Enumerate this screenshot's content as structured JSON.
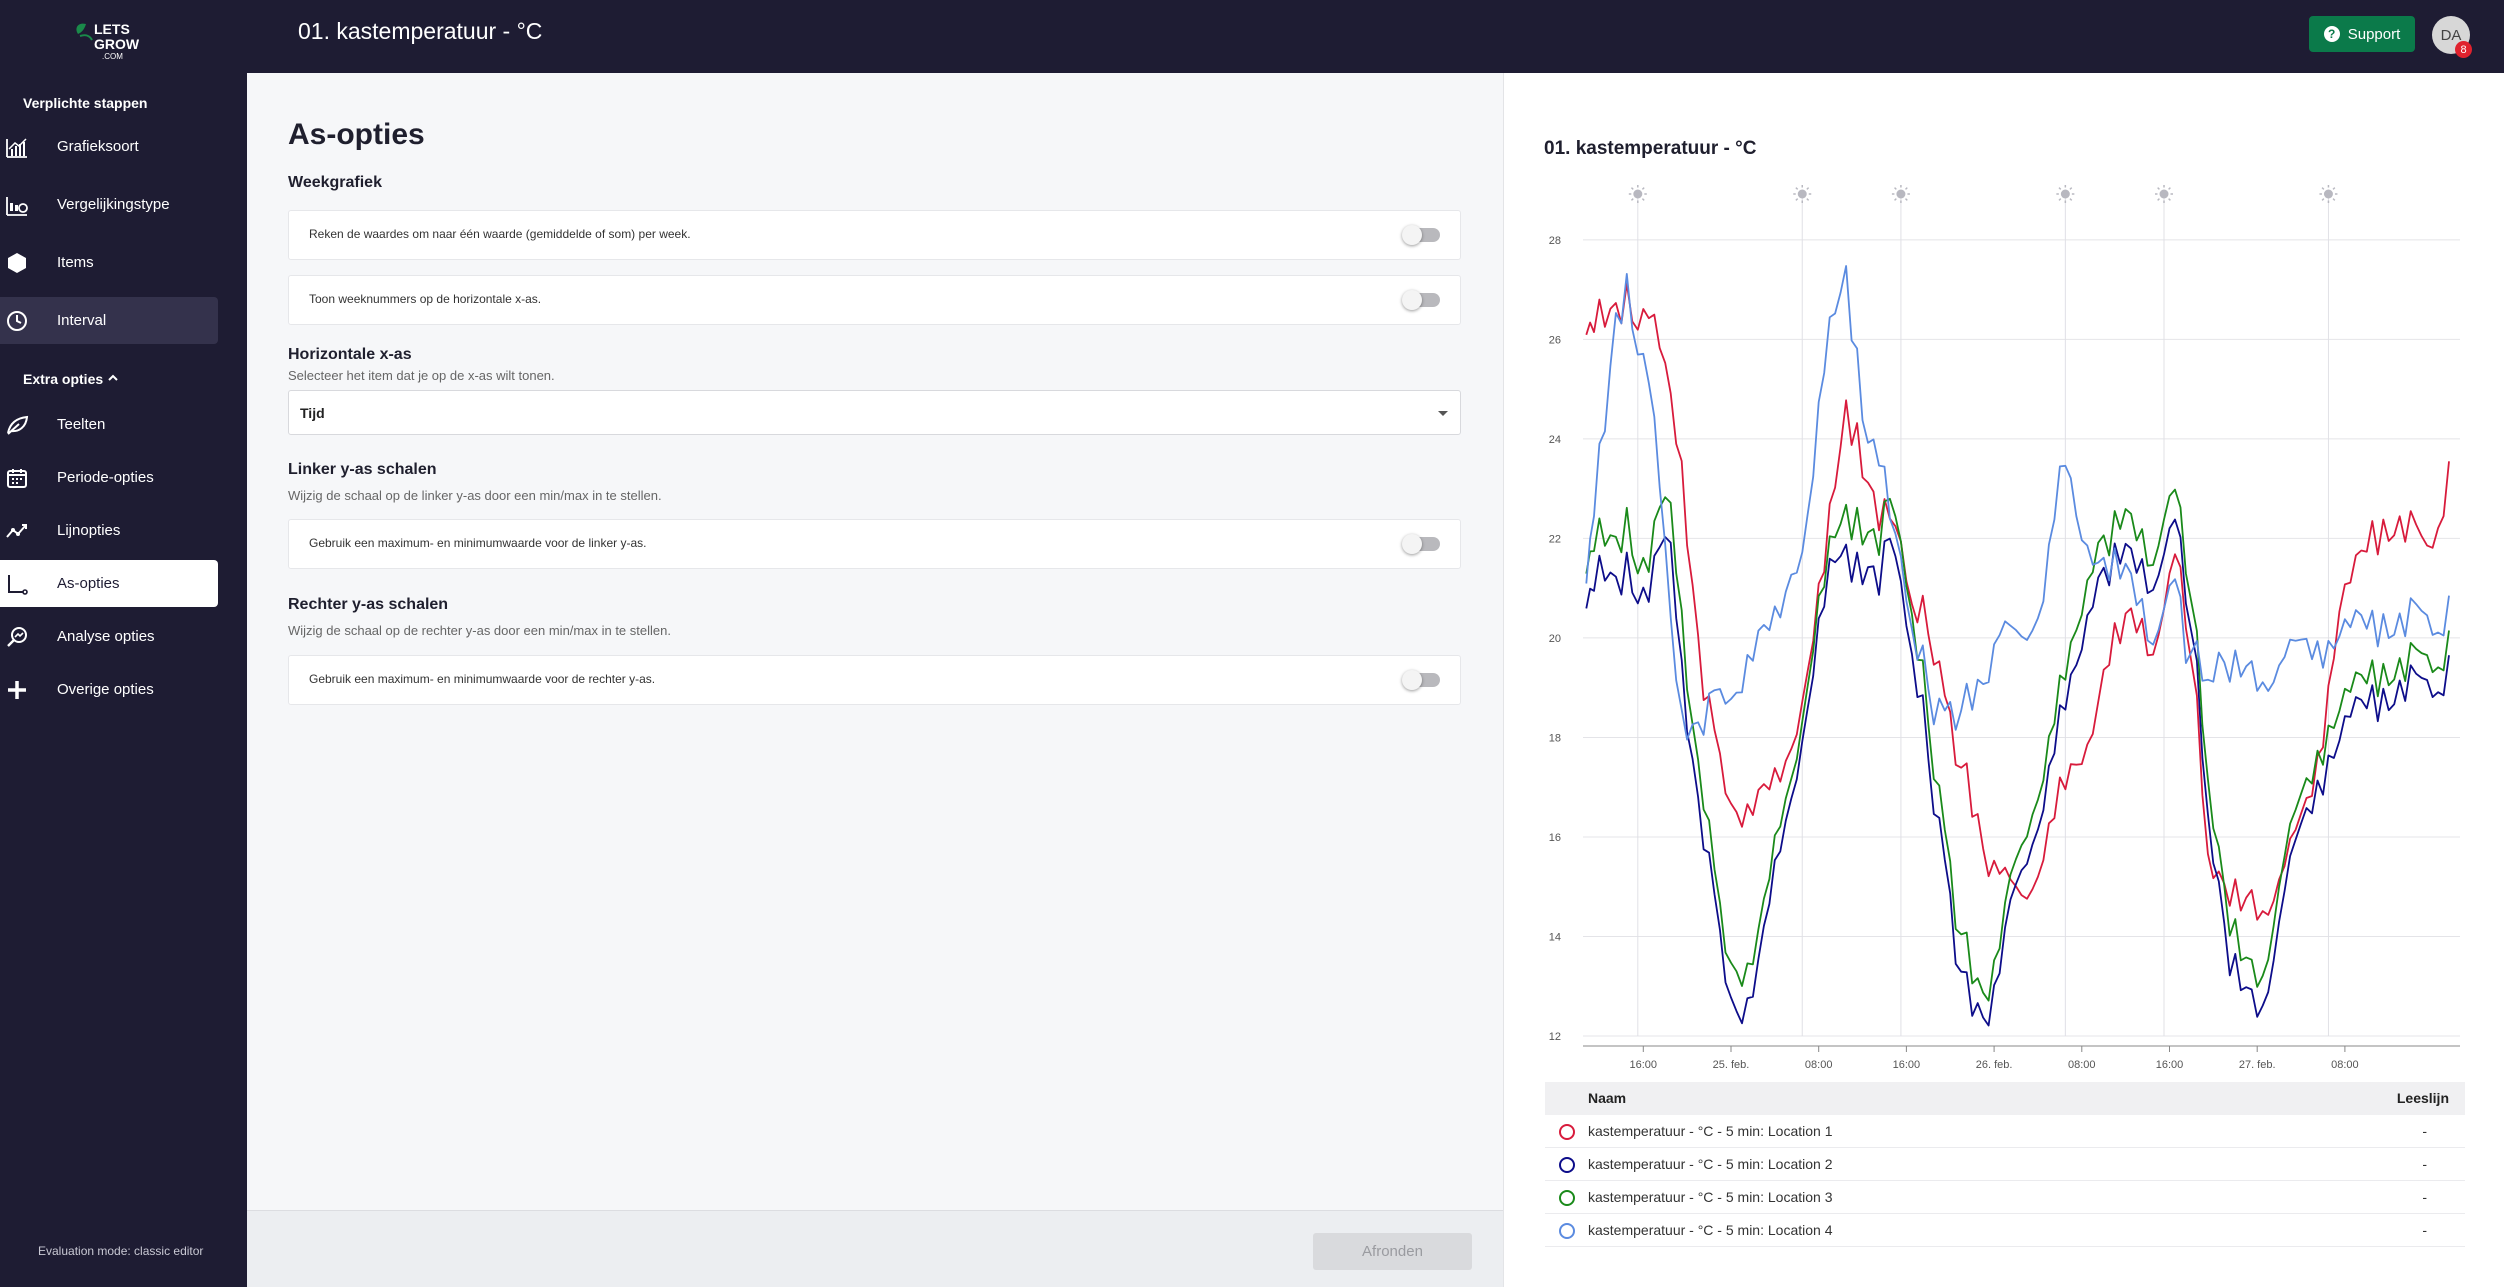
{
  "app": {
    "title": "01. kastemperatuur - °C",
    "support_label": "Support",
    "avatar_initials": "DA",
    "notification_count": "8",
    "logo_text_1": "LETS",
    "logo_text_2": "GROW",
    "logo_text_3": ".COM"
  },
  "sidebar": {
    "required_heading": "Verplichte stappen",
    "required_items": [
      {
        "label": "Grafieksoort",
        "icon": "bar-chart-icon"
      },
      {
        "label": "Vergelijkingstype",
        "icon": "compare-icon"
      },
      {
        "label": "Items",
        "icon": "hexagon-icon"
      },
      {
        "label": "Interval",
        "icon": "clock-icon"
      }
    ],
    "extra_heading": "Extra opties",
    "extra_items": [
      {
        "label": "Teelten",
        "icon": "leaf-icon"
      },
      {
        "label": "Periode-opties",
        "icon": "calendar-icon"
      },
      {
        "label": "Lijnopties",
        "icon": "trend-line-icon"
      },
      {
        "label": "As-opties",
        "icon": "axis-icon"
      },
      {
        "label": "Analyse opties",
        "icon": "analysis-icon"
      },
      {
        "label": "Overige opties",
        "icon": "plus-icon"
      }
    ],
    "eval_mode": "Evaluation mode: classic editor"
  },
  "main": {
    "page_title": "As-opties",
    "week_heading": "Weekgrafiek",
    "week_opt1": "Reken de waardes om naar één waarde (gemiddelde of som) per week.",
    "week_opt2": "Toon weeknummers op de horizontale x-as.",
    "xaxis_heading": "Horizontale x-as",
    "xaxis_sub": "Selecteer het item dat je op de x-as wilt tonen.",
    "xaxis_value": "Tijd",
    "left_heading": "Linker y-as schalen",
    "left_sub": "Wijzig de schaal op de linker y-as door een min/max in te stellen.",
    "left_opt": "Gebruik een maximum- en minimumwaarde voor de linker y-as.",
    "right_heading": "Rechter y-as schalen",
    "right_sub": "Wijzig de schaal op de rechter y-as door een min/max in te stellen.",
    "right_opt": "Gebruik een maximum- en minimumwaarde voor de rechter y-as.",
    "finish_label": "Afronden"
  },
  "legend": {
    "col_name": "Naam",
    "col_read": "Leeslijn",
    "rows": [
      {
        "name": "kastemperatuur - °C - 5 min: Location 1",
        "value": "-",
        "color": "#d81b3c"
      },
      {
        "name": "kastemperatuur - °C - 5 min: Location 2",
        "value": "-",
        "color": "#0d0d8a"
      },
      {
        "name": "kastemperatuur - °C - 5 min: Location 3",
        "value": "-",
        "color": "#1a8a1a"
      },
      {
        "name": "kastemperatuur - °C - 5 min: Location 4",
        "value": "-",
        "color": "#5b8be0"
      }
    ]
  },
  "chart_data": {
    "type": "line",
    "title": "01. kastemperatuur - °C",
    "ylim": [
      12,
      28.5
    ],
    "yticks": [
      12,
      14,
      16,
      18,
      20,
      22,
      24,
      26,
      28
    ],
    "x_range_hours": [
      10.5,
      60.5
    ],
    "xticks": [
      {
        "label": "16:00",
        "h": 16
      },
      {
        "label": "25. feb.",
        "h": 24
      },
      {
        "label": "08:00",
        "h": 32
      },
      {
        "label": "16:00",
        "h": 40
      },
      {
        "label": "26. feb.",
        "h": 48
      },
      {
        "label": "08:00",
        "h": 56
      },
      {
        "label": "16:00",
        "h": 64
      },
      {
        "label": "27. feb.",
        "h": 72
      },
      {
        "label": "08:00",
        "h": 80
      }
    ],
    "sun_marker_hours": [
      15.5,
      30.5,
      39.5,
      54.5,
      63.5,
      78.5
    ],
    "x_unit": "hours since 24 feb 00:00",
    "grid": true,
    "series": [
      {
        "name": "kastemperatuur - °C - 5 min: Location 1",
        "color": "#d81b3c",
        "x": [
          10.8,
          11.5,
          12.5,
          13.5,
          14.5,
          15.5,
          16.5,
          17.5,
          18.5,
          19.5,
          20.5,
          21.5,
          22.5,
          23.5,
          24.5,
          25.5,
          26.5,
          27.5,
          28.5,
          29.5,
          30.5,
          31.5,
          32.5,
          33.5,
          34.5,
          35.5,
          36.5,
          37.5,
          38.5,
          39.5,
          40.5,
          41.5,
          42.5,
          43.5,
          44.5,
          45.5,
          46.5,
          47.5,
          48.5,
          49.5,
          50.5,
          51.5,
          52.5,
          53.5,
          54.5,
          55.5,
          56.5,
          57.5,
          58.5,
          59.5,
          60.5,
          61.5,
          62.5,
          63.5,
          64.5,
          65.5,
          66.5,
          67.5,
          68.5,
          69.5,
          70.5,
          71.5,
          72.5,
          73.5,
          74.5,
          75.5,
          76.5,
          77.5,
          78.5,
          79.5,
          80.5,
          81.5,
          82.5,
          83.5,
          84.5,
          85.5,
          86.5,
          87.5,
          88.5,
          89.5
        ],
        "y": [
          25.8,
          26.2,
          26.6,
          26.7,
          26.8,
          26.5,
          26.3,
          25.8,
          25.0,
          23.5,
          21.0,
          19.0,
          17.8,
          17.0,
          16.8,
          16.5,
          16.6,
          16.8,
          17.2,
          18.0,
          19.0,
          20.2,
          21.5,
          23.0,
          24.5,
          24.0,
          23.2,
          22.5,
          22.2,
          21.8,
          21.0,
          20.5,
          19.8,
          18.5,
          17.8,
          17.2,
          16.5,
          15.5,
          15.0,
          14.9,
          15.0,
          15.3,
          15.8,
          16.5,
          17.0,
          17.5,
          18.0,
          19.0,
          19.8,
          20.0,
          20.3,
          20.2,
          20.0,
          20.5,
          21.5,
          20.5,
          18.5,
          16.0,
          15.0,
          14.8,
          14.6,
          14.6,
          14.7,
          15.0,
          15.3,
          15.8,
          16.5,
          17.5,
          19.0,
          20.5,
          21.0,
          21.5,
          22.0,
          22.2,
          22.3,
          22.2,
          22.0,
          21.8,
          22.5,
          23.2
        ]
      },
      {
        "name": "kastemperatuur - °C - 5 min: Location 2",
        "color": "#0d0d8a",
        "x": [
          10.8,
          11.5,
          12.5,
          13.5,
          14.5,
          15.5,
          16.5,
          17.5,
          18.5,
          19.5,
          20.5,
          21.5,
          22.5,
          23.5,
          24.5,
          25.5,
          26.5,
          27.5,
          28.5,
          29.5,
          30.5,
          31.5,
          32.5,
          33.5,
          34.5,
          35.5,
          36.5,
          37.5,
          38.5,
          39.5,
          40.5,
          41.5,
          42.5,
          43.5,
          44.5,
          45.5,
          46.5,
          47.5,
          48.5,
          49.5,
          50.5,
          51.5,
          52.5,
          53.5,
          54.5,
          55.5,
          56.5,
          57.5,
          58.5,
          59.5,
          60.5,
          61.5,
          62.5,
          63.5,
          64.5,
          65.5,
          66.5,
          67.5,
          68.5,
          69.5,
          70.5,
          71.5,
          72.5,
          73.5,
          74.5,
          75.5,
          76.5,
          77.5,
          78.5,
          79.5,
          80.5,
          81.5,
          82.5,
          83.5,
          84.5,
          85.5,
          86.5,
          87.5,
          88.5,
          89.5
        ],
        "y": [
          20.3,
          21.0,
          21.5,
          21.2,
          21.4,
          21.0,
          20.6,
          21.8,
          22.0,
          19.5,
          17.5,
          16.0,
          14.5,
          13.2,
          12.8,
          12.6,
          13.2,
          14.5,
          15.8,
          17.0,
          18.2,
          19.5,
          20.8,
          21.5,
          21.6,
          21.4,
          21.5,
          21.2,
          21.8,
          21.0,
          20.0,
          18.5,
          16.8,
          15.2,
          13.8,
          13.0,
          12.7,
          12.5,
          13.0,
          14.5,
          15.5,
          16.2,
          16.8,
          17.8,
          18.6,
          19.5,
          20.6,
          21.5,
          21.4,
          21.6,
          21.5,
          21.4,
          21.3,
          21.6,
          22.2,
          21.0,
          19.2,
          16.8,
          14.8,
          13.4,
          13.0,
          12.6,
          12.8,
          13.8,
          14.8,
          15.6,
          16.3,
          17.0,
          17.6,
          17.9,
          18.3,
          18.5,
          18.7,
          18.8,
          18.9,
          19.0,
          19.0,
          19.1,
          19.2,
          19.3
        ]
      },
      {
        "name": "kastemperatuur - °C - 5 min: Location 3",
        "color": "#1a8a1a",
        "x": [
          10.8,
          11.5,
          12.5,
          13.5,
          14.5,
          15.5,
          16.5,
          17.5,
          18.5,
          19.5,
          20.5,
          21.5,
          22.5,
          23.5,
          24.5,
          25.5,
          26.5,
          27.5,
          28.5,
          29.5,
          30.5,
          31.5,
          32.5,
          33.5,
          34.5,
          35.5,
          36.5,
          37.5,
          38.5,
          39.5,
          40.5,
          41.5,
          42.5,
          43.5,
          44.5,
          45.5,
          46.5,
          47.5,
          48.5,
          49.5,
          50.5,
          51.5,
          52.5,
          53.5,
          54.5,
          55.5,
          56.5,
          57.5,
          58.5,
          59.5,
          60.5,
          61.5,
          62.5,
          63.5,
          64.5,
          65.5,
          66.5,
          67.5,
          68.5,
          69.5,
          70.5,
          71.5,
          72.5,
          73.5,
          74.5,
          75.5,
          76.5,
          77.5,
          78.5,
          79.5,
          80.5,
          81.5,
          82.5,
          83.5,
          84.5,
          85.5,
          86.5,
          87.5,
          88.5,
          89.5
        ],
        "y": [
          21.0,
          21.8,
          22.2,
          22.0,
          22.3,
          21.6,
          21.2,
          22.6,
          22.8,
          20.5,
          18.2,
          16.8,
          15.0,
          13.8,
          13.6,
          13.3,
          13.8,
          15.0,
          16.3,
          17.4,
          18.6,
          20.0,
          21.2,
          22.0,
          22.4,
          22.3,
          22.2,
          22.0,
          22.6,
          21.8,
          20.8,
          19.2,
          17.5,
          15.8,
          14.5,
          13.8,
          13.2,
          13.0,
          13.5,
          15.0,
          16.0,
          16.8,
          17.4,
          18.4,
          19.2,
          20.2,
          21.3,
          22.2,
          22.0,
          22.3,
          22.2,
          22.0,
          21.8,
          22.3,
          22.8,
          21.6,
          19.8,
          17.5,
          15.5,
          14.2,
          13.6,
          13.2,
          13.4,
          14.5,
          15.5,
          16.2,
          16.9,
          17.6,
          18.2,
          18.5,
          18.8,
          19.0,
          19.2,
          19.3,
          19.4,
          19.4,
          19.5,
          19.6,
          19.7,
          19.8
        ]
      },
      {
        "name": "kastemperatuur - °C - 5 min: Location 4",
        "color": "#5b8be0",
        "x": [
          10.8,
          11.5,
          12.5,
          13.5,
          14.5,
          15.5,
          16.5,
          17.5,
          18.5,
          19.5,
          20.5,
          21.5,
          22.5,
          23.5,
          24.5,
          25.5,
          26.5,
          27.5,
          28.5,
          29.5,
          30.5,
          31.5,
          32.5,
          33.5,
          34.5,
          35.5,
          36.5,
          37.5,
          38.5,
          39.5,
          40.5,
          41.5,
          42.5,
          43.5,
          44.5,
          45.5,
          46.5,
          47.5,
          48.5,
          49.5,
          50.5,
          51.5,
          52.5,
          53.5,
          54.5,
          55.5,
          56.5,
          57.5,
          58.5,
          59.5,
          60.5,
          61.5,
          62.5,
          63.5,
          64.5,
          65.5,
          66.5,
          67.5,
          68.5,
          69.5,
          70.5,
          71.5,
          72.5,
          73.5,
          74.5,
          75.5,
          76.5,
          77.5,
          78.5,
          79.5,
          80.5,
          81.5,
          82.5,
          83.5,
          84.5,
          85.5,
          86.5,
          87.5,
          88.5,
          89.5
        ],
        "y": [
          20.8,
          22.5,
          24.5,
          26.5,
          27.0,
          26.0,
          25.0,
          23.0,
          20.5,
          18.5,
          18.2,
          18.3,
          18.6,
          18.8,
          19.2,
          19.5,
          19.8,
          20.0,
          20.5,
          21.5,
          22.0,
          23.5,
          25.5,
          26.5,
          27.2,
          25.5,
          24.0,
          23.8,
          22.2,
          21.5,
          20.5,
          19.5,
          18.6,
          18.2,
          18.5,
          18.8,
          19.2,
          19.4,
          19.8,
          20.0,
          20.2,
          20.5,
          21.0,
          22.5,
          23.5,
          22.5,
          22.0,
          21.8,
          21.5,
          21.3,
          21.0,
          20.6,
          20.2,
          20.5,
          21.0,
          19.8,
          19.6,
          19.5,
          19.4,
          19.3,
          19.3,
          19.2,
          19.3,
          19.4,
          19.5,
          19.6,
          19.7,
          19.8,
          19.9,
          20.0,
          20.1,
          20.2,
          20.2,
          20.3,
          20.3,
          20.3,
          20.4,
          20.4,
          20.4,
          20.5
        ]
      }
    ]
  }
}
